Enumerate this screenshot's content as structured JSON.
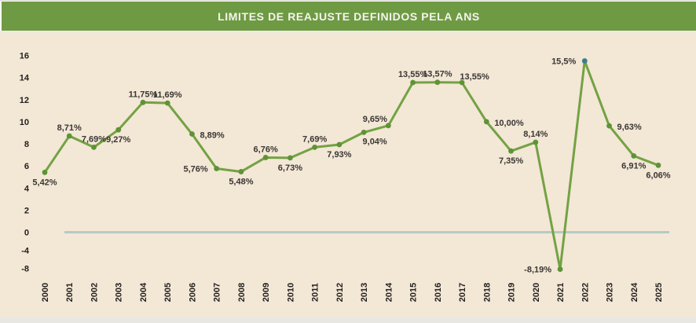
{
  "header": {
    "title": "LIMITES DE REAJUSTE DEFINIDOS PELA ANS"
  },
  "colors": {
    "header_bg": "#6f9a44",
    "panel_bg": "#f3e7d6",
    "line": "#73a243",
    "marker": "#5e9336",
    "highlight_marker": "#35808d",
    "zero_line": "#b7c9c4",
    "value_label_text": "#3a3733",
    "axis_text": "#23211e",
    "title_text": "#f4f4ee",
    "page_bg": "#fdfdfb",
    "bottom_strip": "#e8e7e2"
  },
  "chart_data": {
    "type": "line",
    "title": "LIMITES DE REAJUSTE DEFINIDOS PELA ANS",
    "categories": [
      "2000",
      "2001",
      "2002",
      "2003",
      "2004",
      "2005",
      "2006",
      "2007",
      "2008",
      "2009",
      "2010",
      "2011",
      "2012",
      "2013",
      "2014",
      "2015",
      "2016",
      "2017",
      "2018",
      "2019",
      "2020",
      "2021",
      "2022",
      "2023",
      "2024",
      "2025"
    ],
    "values": [
      5.42,
      8.71,
      7.69,
      9.27,
      11.75,
      11.69,
      8.89,
      5.76,
      5.48,
      6.76,
      6.73,
      7.69,
      7.93,
      9.04,
      9.65,
      13.55,
      13.57,
      13.55,
      10.0,
      7.35,
      8.14,
      -8.19,
      15.5,
      9.63,
      6.91,
      6.06
    ],
    "point_labels": [
      "5,42%",
      "8,71%",
      "7,69%",
      "9,27%",
      "11,75%",
      "11,69%",
      "8,89%",
      "5,76%",
      "5,48%",
      "6,76%",
      "6,73%",
      "7,69%",
      "7,93%",
      "9,04%",
      "9,65%",
      "13,55%",
      "13,57%",
      "13,55%",
      "10,00%",
      "7,35%",
      "8,14%",
      "-8,19%",
      "15,5%",
      "9,63%",
      "6,91%",
      "6,06%"
    ],
    "label_positions": [
      "below",
      "above",
      "above",
      "below",
      "above",
      "above",
      "right",
      "left",
      "below",
      "above",
      "below",
      "above",
      "below",
      "below-right",
      "above-left",
      "above",
      "above",
      "above-right",
      "right",
      "below",
      "above",
      "left",
      "left",
      "right",
      "below",
      "below"
    ],
    "xlabel": "",
    "ylabel": "",
    "y_axis": {
      "ticks": [
        16,
        14,
        12,
        10,
        8,
        6,
        4,
        2,
        0,
        -4,
        -8
      ],
      "note": "negative region drawn compressed relative to positive region"
    },
    "grid": "off",
    "legend": "none",
    "zero_line": true,
    "highlight_point": {
      "year": "2022",
      "marker_color": "#35808d"
    }
  }
}
